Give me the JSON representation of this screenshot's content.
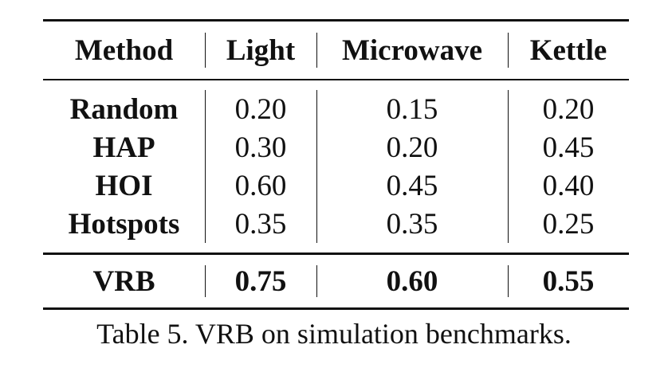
{
  "table": {
    "headers": [
      "Method",
      "Light",
      "Microwave",
      "Kettle"
    ],
    "rows": [
      {
        "method": "Random",
        "light": "0.20",
        "microwave": "0.15",
        "kettle": "0.20"
      },
      {
        "method": "HAP",
        "light": "0.30",
        "microwave": "0.20",
        "kettle": "0.45"
      },
      {
        "method": "HOI",
        "light": "0.60",
        "microwave": "0.45",
        "kettle": "0.40"
      },
      {
        "method": "Hotspots",
        "light": "0.35",
        "microwave": "0.35",
        "kettle": "0.25"
      }
    ],
    "highlight_row": {
      "method": "VRB",
      "light": "0.75",
      "microwave": "0.60",
      "kettle": "0.55"
    }
  },
  "caption": "Table 5. VRB on simulation benchmarks."
}
